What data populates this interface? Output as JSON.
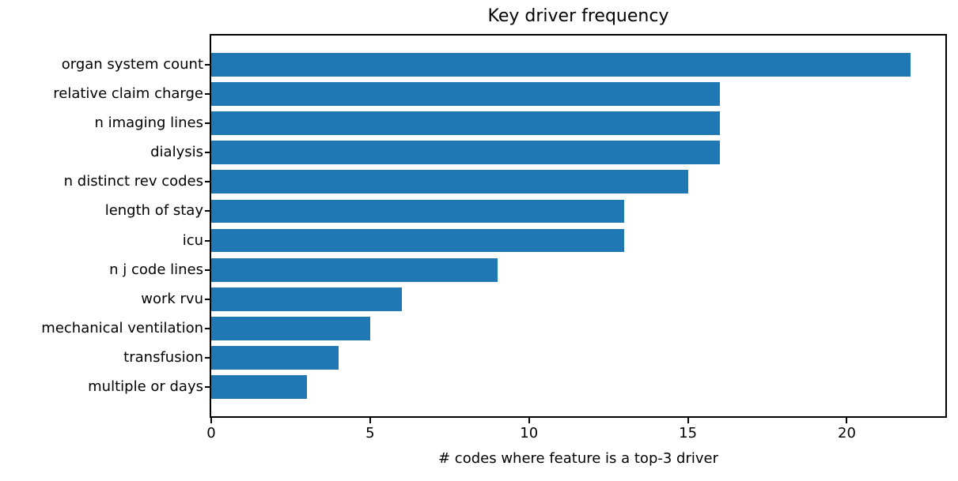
{
  "chart_data": {
    "type": "bar",
    "orientation": "horizontal",
    "title": "Key driver frequency",
    "xlabel": "# codes where feature is a top-3 driver",
    "ylabel": "",
    "categories": [
      "organ system count",
      "relative claim charge",
      "n imaging lines",
      "dialysis",
      "n distinct rev codes",
      "length of stay",
      "icu",
      "n j code lines",
      "work rvu",
      "mechanical ventilation",
      "transfusion",
      "multiple or days"
    ],
    "values": [
      22,
      16,
      16,
      16,
      15,
      13,
      13,
      9,
      6,
      5,
      4,
      3
    ],
    "xticks": [
      0,
      5,
      10,
      15,
      20
    ],
    "xlim": [
      0,
      23.1
    ],
    "grid": false,
    "bar_color": "#1f77b4",
    "background_color": "#ffffff",
    "text_color": "#000000"
  }
}
